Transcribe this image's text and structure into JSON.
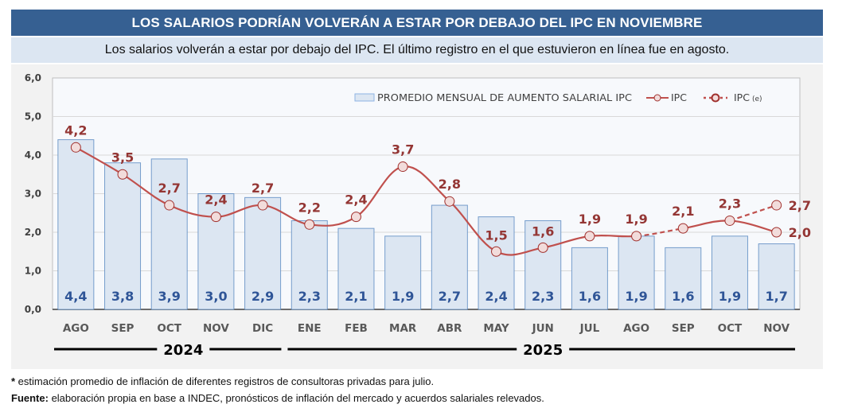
{
  "header": {
    "title": "LOS SALARIOS PODRÍAN VOLVERÁN A ESTAR POR DEBAJO DEL IPC EN NOVIEMBRE",
    "subtitle": "Los salarios volverán a estar por debajo del IPC. El último registro en el que estuvieron en línea fue en agosto."
  },
  "footer": {
    "note_marker": "*",
    "note": " estimación promedio de inflación de diferentes registros de consultoras privadas para julio.",
    "source_label": "Fuente:",
    "source": " elaboración propia en base a INDEC, pronósticos de inflación del mercado y acuerdos salariales relevados."
  },
  "colors": {
    "header_bg": "#366092",
    "subtitle_bg": "#dce6f2",
    "bar_fill": "#dce6f2",
    "bar_stroke": "#4f81bd",
    "bar_label": "#2f5597",
    "line": "#c0504d",
    "marker_fill": "#f2dcdb",
    "marker_stroke": "#a0302d",
    "line_label": "#943634"
  },
  "chart_data": {
    "type": "bar+line",
    "title": "LOS SALARIOS PODRÍAN VOLVERÁN A ESTAR POR DEBAJO DEL IPC EN NOVIEMBRE",
    "categories": [
      "AGO",
      "SEP",
      "OCT",
      "NOV",
      "DIC",
      "ENE",
      "FEB",
      "MAR",
      "ABR",
      "MAY",
      "JUN",
      "JUL",
      "AGO",
      "SEP",
      "OCT",
      "NOV"
    ],
    "year_groups": [
      {
        "label": "2024",
        "from": 0,
        "to": 4
      },
      {
        "label": "2025",
        "from": 5,
        "to": 15
      }
    ],
    "ylim": [
      0,
      6
    ],
    "yticks": [
      "0,0",
      "1,0",
      "2,0",
      "3,0",
      "4,0",
      "5,0",
      "6,0"
    ],
    "grid": true,
    "legend_position": "top-right",
    "series": [
      {
        "name": "PROMEDIO MENSUAL DE AUMENTO SALARIAL IPC",
        "type": "bar",
        "values": [
          4.4,
          3.8,
          3.9,
          3.0,
          2.9,
          2.3,
          2.1,
          1.9,
          2.7,
          2.4,
          2.3,
          1.6,
          1.9,
          1.6,
          1.9,
          1.7
        ],
        "labels": [
          "4,4",
          "3,8",
          "3,9",
          "3,0",
          "2,9",
          "2,3",
          "2,1",
          "1,9",
          "2,7",
          "2,4",
          "2,3",
          "1,6",
          "1,9",
          "1,6",
          "1,9",
          "1,7"
        ]
      },
      {
        "name": "IPC",
        "type": "line",
        "values": [
          4.2,
          3.5,
          2.7,
          2.4,
          2.7,
          2.2,
          2.4,
          3.7,
          2.8,
          1.5,
          1.6,
          1.9,
          1.9,
          2.1,
          2.3,
          2.0
        ],
        "labels": [
          "4,2",
          "3,5",
          "2,7",
          "2,4",
          "2,7",
          "2,2",
          "2,4",
          "3,7",
          "2,8",
          "1,5",
          "1,6",
          "1,9",
          "1,9",
          "2,1",
          "2,3",
          "2,0"
        ],
        "dashed_segments": [
          [
            12,
            13
          ]
        ]
      },
      {
        "name": "IPC (e)",
        "type": "line-dashed",
        "values": [
          null,
          null,
          null,
          null,
          null,
          null,
          null,
          null,
          null,
          null,
          null,
          null,
          null,
          null,
          2.3,
          2.7
        ],
        "labels": [
          null,
          null,
          null,
          null,
          null,
          null,
          null,
          null,
          null,
          null,
          null,
          null,
          null,
          null,
          null,
          "2,7"
        ]
      }
    ],
    "legend": {
      "bar": "PROMEDIO MENSUAL DE AUMENTO SALARIAL IPC",
      "line": "IPC",
      "estimate_main": "IPC",
      "estimate_sub": "(e)"
    }
  }
}
